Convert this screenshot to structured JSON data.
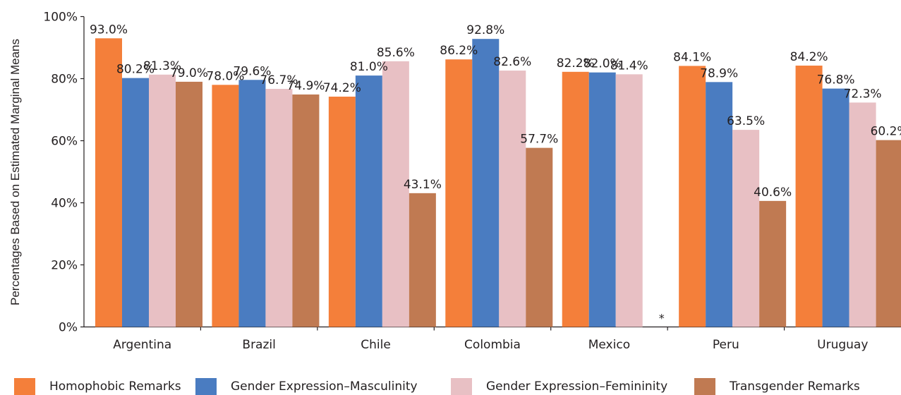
{
  "chart_data": {
    "type": "bar",
    "title": "",
    "xlabel": "",
    "ylabel": "Percentages Based on Estimated Marginal Means",
    "ylim": [
      0,
      100
    ],
    "yticks": [
      "0%",
      "20%",
      "40%",
      "60%",
      "80%",
      "100%"
    ],
    "categories": [
      "Argentina",
      "Brazil",
      "Chile",
      "Colombia",
      "Mexico",
      "Peru",
      "Uruguay"
    ],
    "series": [
      {
        "name": "Homophobic Remarks",
        "color": "#f47f3a",
        "values": [
          93.0,
          78.0,
          74.2,
          86.2,
          82.2,
          84.1,
          84.2
        ],
        "labels": [
          "93.0%",
          "78.0%",
          "74.2%",
          "86.2%",
          "82.2%",
          "84.1%",
          "84.2%"
        ]
      },
      {
        "name": "Gender Expression–Masculinity",
        "color": "#4a7cc1",
        "values": [
          80.2,
          79.6,
          81.0,
          92.8,
          82.0,
          78.9,
          76.8
        ],
        "labels": [
          "80.2%",
          "79.6%",
          "81.0%",
          "92.8%",
          "82.0%",
          "78.9%",
          "76.8%"
        ]
      },
      {
        "name": "Gender Expression–Femininity",
        "color": "#e8c0c4",
        "values": [
          81.3,
          76.7,
          85.6,
          82.6,
          81.4,
          63.5,
          72.3
        ],
        "labels": [
          "81.3%",
          "76.7%",
          "85.6%",
          "82.6%",
          "81.4%",
          "63.5%",
          "72.3%"
        ]
      },
      {
        "name": "Transgender Remarks",
        "color": "#c07a52",
        "values": [
          79.0,
          74.9,
          43.1,
          57.7,
          null,
          40.6,
          60.2
        ],
        "labels": [
          "79.0%",
          "74.9%",
          "43.1%",
          "57.7%",
          "*",
          "40.6%",
          "60.2%"
        ]
      }
    ],
    "legend_position": "bottom",
    "grid": false
  }
}
